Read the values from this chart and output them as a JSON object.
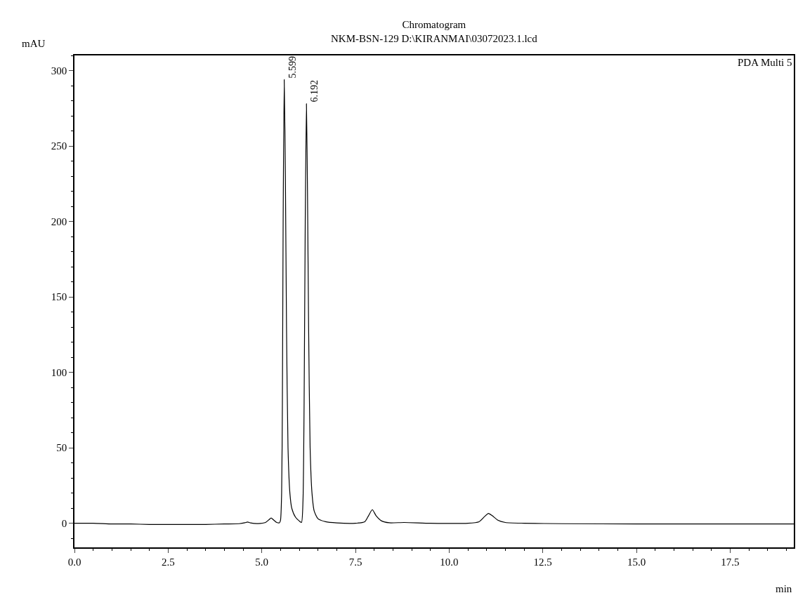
{
  "chart_data": {
    "type": "line",
    "title": "Chromatogram",
    "subtitle": "NKM-BSN-129 D:\\KIRANMAI\\03072023.1.lcd",
    "xlabel": "min",
    "ylabel": "mAU",
    "series": [
      {
        "color": "#000000",
        "x": [
          0,
          0.5,
          1,
          1.5,
          2,
          2.5,
          3,
          3.5,
          4,
          4.4,
          4.55,
          4.62,
          4.7,
          4.9,
          5.1,
          5.2,
          5.25,
          5.3,
          5.4,
          5.47,
          5.5,
          5.53,
          5.55,
          5.57,
          5.599,
          5.63,
          5.66,
          5.7,
          5.75,
          5.8,
          5.9,
          6.0,
          6.06,
          6.1,
          6.13,
          6.16,
          6.192,
          6.22,
          6.25,
          6.29,
          6.34,
          6.4,
          6.5,
          6.7,
          7.0,
          7.5,
          7.75,
          7.85,
          7.95,
          8.05,
          8.2,
          8.4,
          8.8,
          9.5,
          10.5,
          10.8,
          10.95,
          11.05,
          11.15,
          11.3,
          11.5,
          12,
          13,
          15,
          17.5,
          19.2
        ],
        "values": [
          0,
          0,
          -0.5,
          -0.5,
          -0.8,
          -0.8,
          -0.8,
          -0.8,
          -0.5,
          -0.3,
          0.3,
          0.8,
          0.2,
          -0.2,
          0.5,
          2.5,
          3.5,
          2.5,
          0.5,
          0.3,
          2,
          20,
          80,
          200,
          294,
          230,
          130,
          50,
          20,
          10,
          4,
          1.5,
          0.5,
          15,
          80,
          200,
          278,
          220,
          130,
          50,
          20,
          8,
          3,
          1,
          0.2,
          0,
          1,
          5,
          9,
          5,
          1.5,
          0.3,
          0.5,
          0,
          0,
          1,
          4.5,
          6.5,
          5,
          2,
          0.5,
          0,
          -0.3,
          -0.5,
          -0.5,
          -0.5
        ]
      }
    ],
    "annotations": [
      {
        "text": "5.599",
        "x": 5.599,
        "y": 294
      },
      {
        "text": "6.192",
        "x": 6.192,
        "y": 278
      },
      "PDA Multi 5"
    ],
    "xlim": [
      0,
      19.2
    ],
    "xticks": [
      {
        "value": 0,
        "label": "0.0"
      },
      {
        "value": 2.5,
        "label": "2.5"
      },
      {
        "value": 5,
        "label": "5.0"
      },
      {
        "value": 7.5,
        "label": "7.5"
      },
      {
        "value": 10,
        "label": "10.0"
      },
      {
        "value": 12.5,
        "label": "12.5"
      },
      {
        "value": 15,
        "label": "15.0"
      },
      {
        "value": 17.5,
        "label": "17.5"
      }
    ],
    "ylim": [
      -16,
      310
    ],
    "yticks": [
      0,
      50,
      100,
      150,
      200,
      250,
      300
    ],
    "marker": "none",
    "line_style": "solid"
  }
}
